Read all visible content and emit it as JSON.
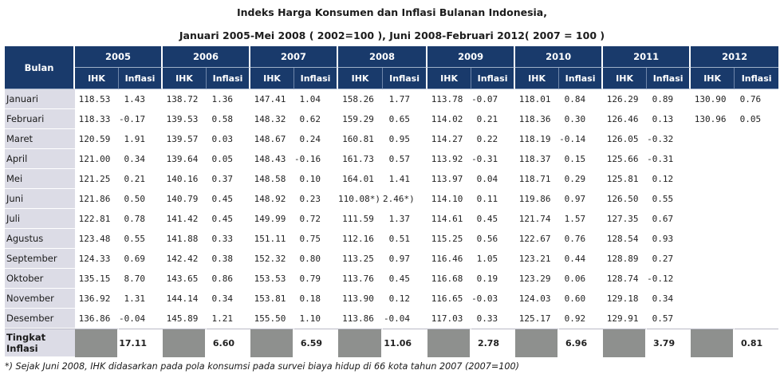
{
  "title_line1": "Indeks Harga Konsumen dan Inflasi Bulanan Indonesia,",
  "title_line2": "Januari 2005-Mei 2008 ( 2002=100 ), Juni 2008-Februari 2012( 2007 = 100 )",
  "header": {
    "bulan": "Bulan",
    "years": [
      "2005",
      "2006",
      "2007",
      "2008",
      "2009",
      "2010",
      "2011",
      "2012"
    ],
    "ihk": "IHK",
    "inflasi": "Inflasi"
  },
  "rows": [
    {
      "month": "Januari",
      "cells": [
        "118.53",
        "1.43",
        "138.72",
        "1.36",
        "147.41",
        "1.04",
        "158.26",
        "1.77",
        "113.78",
        "-0.07",
        "118.01",
        "0.84",
        "126.29",
        "0.89",
        "130.90",
        "0.76"
      ]
    },
    {
      "month": "Februari",
      "cells": [
        "118.33",
        "-0.17",
        "139.53",
        "0.58",
        "148.32",
        "0.62",
        "159.29",
        "0.65",
        "114.02",
        "0.21",
        "118.36",
        "0.30",
        "126.46",
        "0.13",
        "130.96",
        "0.05"
      ]
    },
    {
      "month": "Maret",
      "cells": [
        "120.59",
        "1.91",
        "139.57",
        "0.03",
        "148.67",
        "0.24",
        "160.81",
        "0.95",
        "114.27",
        "0.22",
        "118.19",
        "-0.14",
        "126.05",
        "-0.32",
        "",
        ""
      ]
    },
    {
      "month": "April",
      "cells": [
        "121.00",
        "0.34",
        "139.64",
        "0.05",
        "148.43",
        "-0.16",
        "161.73",
        "0.57",
        "113.92",
        "-0.31",
        "118.37",
        "0.15",
        "125.66",
        "-0.31",
        "",
        ""
      ]
    },
    {
      "month": "Mei",
      "cells": [
        "121.25",
        "0.21",
        "140.16",
        "0.37",
        "148.58",
        "0.10",
        "164.01",
        "1.41",
        "113.97",
        "0.04",
        "118.71",
        "0.29",
        "125.81",
        "0.12",
        "",
        ""
      ]
    },
    {
      "month": "Juni",
      "cells": [
        "121.86",
        "0.50",
        "140.79",
        "0.45",
        "148.92",
        "0.23",
        "110.08*)",
        "2.46*)",
        "114.10",
        "0.11",
        "119.86",
        "0.97",
        "126.50",
        "0.55",
        "",
        ""
      ]
    },
    {
      "month": "Juli",
      "cells": [
        "122.81",
        "0.78",
        "141.42",
        "0.45",
        "149.99",
        "0.72",
        "111.59",
        "1.37",
        "114.61",
        "0.45",
        "121.74",
        "1.57",
        "127.35",
        "0.67",
        "",
        ""
      ]
    },
    {
      "month": "Agustus",
      "cells": [
        "123.48",
        "0.55",
        "141.88",
        "0.33",
        "151.11",
        "0.75",
        "112.16",
        "0.51",
        "115.25",
        "0.56",
        "122.67",
        "0.76",
        "128.54",
        "0.93",
        "",
        ""
      ]
    },
    {
      "month": "September",
      "cells": [
        "124.33",
        "0.69",
        "142.42",
        "0.38",
        "152.32",
        "0.80",
        "113.25",
        "0.97",
        "116.46",
        "1.05",
        "123.21",
        "0.44",
        "128.89",
        "0.27",
        "",
        ""
      ]
    },
    {
      "month": "Oktober",
      "cells": [
        "135.15",
        "8.70",
        "143.65",
        "0.86",
        "153.53",
        "0.79",
        "113.76",
        "0.45",
        "116.68",
        "0.19",
        "123.29",
        "0.06",
        "128.74",
        "-0.12",
        "",
        ""
      ]
    },
    {
      "month": "November",
      "cells": [
        "136.92",
        "1.31",
        "144.14",
        "0.34",
        "153.81",
        "0.18",
        "113.90",
        "0.12",
        "116.65",
        "-0.03",
        "124.03",
        "0.60",
        "129.18",
        "0.34",
        "",
        ""
      ]
    },
    {
      "month": "Desember",
      "cells": [
        "136.86",
        "-0.04",
        "145.89",
        "1.21",
        "155.50",
        "1.10",
        "113.86",
        "-0.04",
        "117.03",
        "0.33",
        "125.17",
        "0.92",
        "129.91",
        "0.57",
        "",
        ""
      ]
    }
  ],
  "total": {
    "label": "Tingkat Inflasi",
    "values": [
      "17.11",
      "6.60",
      "6.59",
      "11.06",
      "2.78",
      "6.96",
      "3.79",
      "0.81"
    ]
  },
  "footnote": "*) Sejak Juni 2008, IHK didasarkan pada pola konsumsi pada survei biaya hidup di 66 kota tahun 2007 (2007=100)"
}
